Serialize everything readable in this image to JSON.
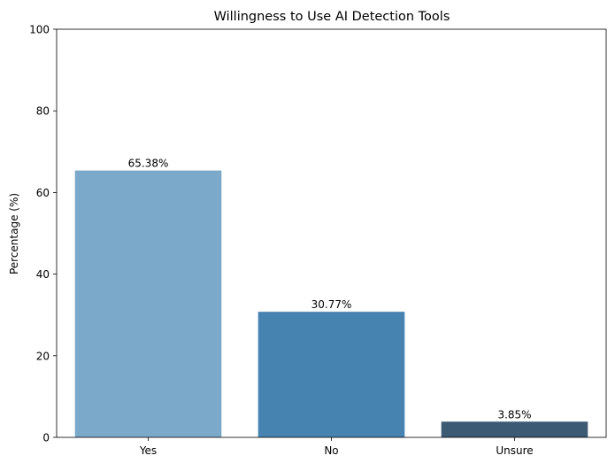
{
  "chart_data": {
    "type": "bar",
    "title": "Willingness to Use AI Detection Tools",
    "xlabel": "",
    "ylabel": "Percentage (%)",
    "categories": [
      "Yes",
      "No",
      "Unsure"
    ],
    "values": [
      65.38,
      30.77,
      3.85
    ],
    "value_labels": [
      "65.38%",
      "30.77%",
      "3.85%"
    ],
    "colors": [
      "#7ba9c9",
      "#4783b0",
      "#3c5a74"
    ],
    "ylim": [
      0,
      100
    ],
    "yticks": [
      0,
      20,
      40,
      60,
      80,
      100
    ],
    "grid": false,
    "legend": "none"
  }
}
